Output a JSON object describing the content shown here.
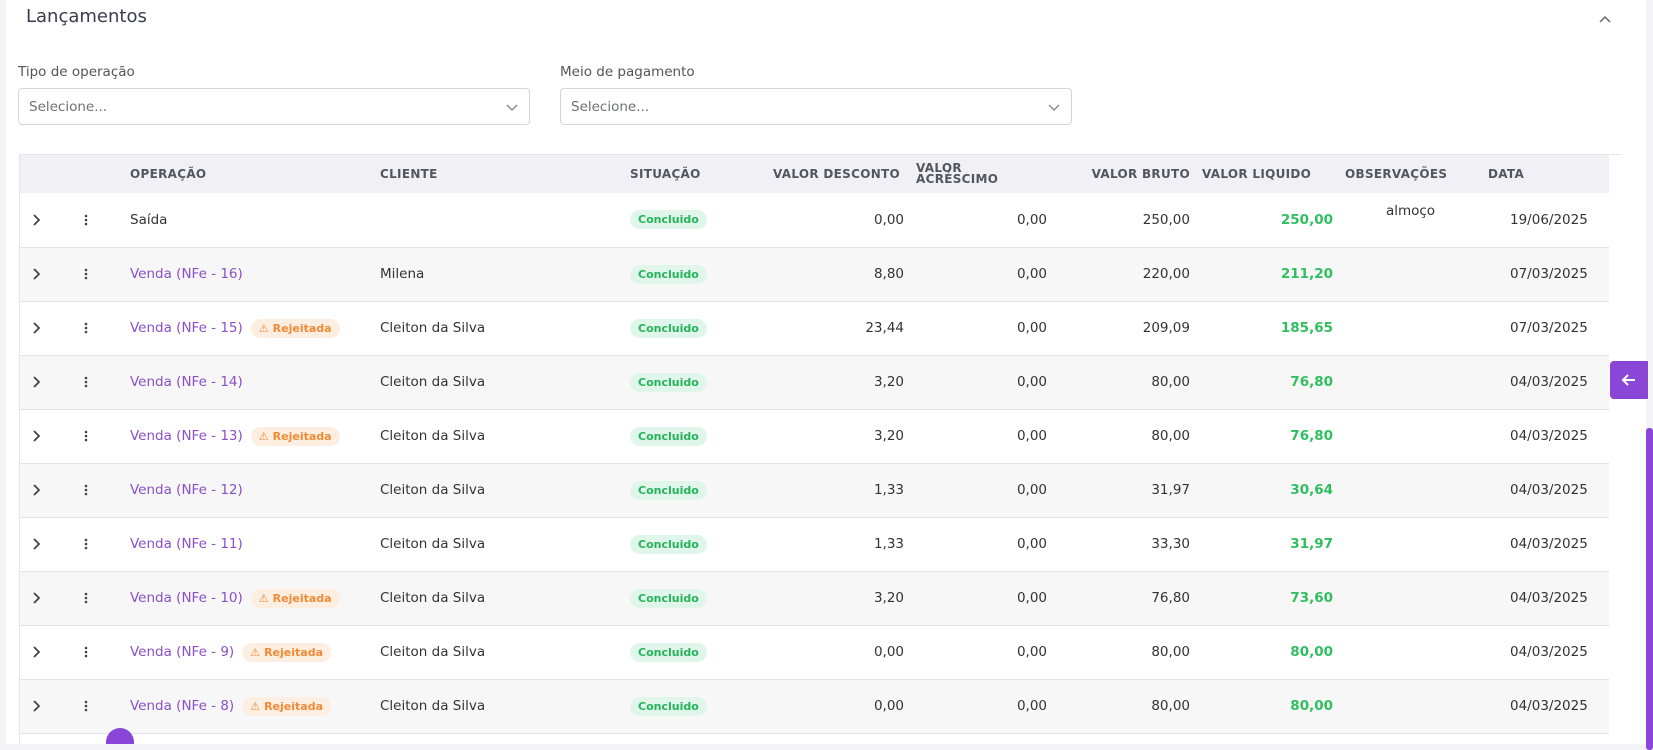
{
  "section": {
    "title": "Lançamentos"
  },
  "filters": {
    "operation": {
      "label": "Tipo de operação",
      "placeholder": "Selecione..."
    },
    "payment": {
      "label": "Meio de pagamento",
      "placeholder": "Selecione..."
    }
  },
  "table": {
    "headers": [
      "OPERAÇÃO",
      "CLIENTE",
      "SITUAÇÃO",
      "VALOR DESCONTO",
      "VALOR ACRÉSCIMO",
      "VALOR BRUTO",
      "VALOR LIQUIDO",
      "OBSERVAÇÕES",
      "DATA"
    ],
    "rows": [
      {
        "op": "Saída",
        "link": false,
        "rej": "",
        "client": "",
        "status": "Concluido",
        "desc": "0,00",
        "acr": "0,00",
        "bruto": "250,00",
        "liq": "250,00",
        "obs": "almoço",
        "date": "19/06/2025"
      },
      {
        "op": "Venda (NFe - 16)",
        "link": true,
        "rej": "",
        "client": "Milena",
        "status": "Concluido",
        "desc": "8,80",
        "acr": "0,00",
        "bruto": "220,00",
        "liq": "211,20",
        "obs": "",
        "date": "07/03/2025"
      },
      {
        "op": "Venda (NFe - 15)",
        "link": true,
        "rej": "Rejeitada",
        "client": "Cleiton da Silva",
        "status": "Concluido",
        "desc": "23,44",
        "acr": "0,00",
        "bruto": "209,09",
        "liq": "185,65",
        "obs": "",
        "date": "07/03/2025"
      },
      {
        "op": "Venda (NFe - 14)",
        "link": true,
        "rej": "",
        "client": "Cleiton da Silva",
        "status": "Concluido",
        "desc": "3,20",
        "acr": "0,00",
        "bruto": "80,00",
        "liq": "76,80",
        "obs": "",
        "date": "04/03/2025"
      },
      {
        "op": "Venda (NFe - 13)",
        "link": true,
        "rej": "Rejeitada",
        "client": "Cleiton da Silva",
        "status": "Concluido",
        "desc": "3,20",
        "acr": "0,00",
        "bruto": "80,00",
        "liq": "76,80",
        "obs": "",
        "date": "04/03/2025"
      },
      {
        "op": "Venda (NFe - 12)",
        "link": true,
        "rej": "",
        "client": "Cleiton da Silva",
        "status": "Concluido",
        "desc": "1,33",
        "acr": "0,00",
        "bruto": "31,97",
        "liq": "30,64",
        "obs": "",
        "date": "04/03/2025"
      },
      {
        "op": "Venda (NFe - 11)",
        "link": true,
        "rej": "",
        "client": "Cleiton da Silva",
        "status": "Concluido",
        "desc": "1,33",
        "acr": "0,00",
        "bruto": "33,30",
        "liq": "31,97",
        "obs": "",
        "date": "04/03/2025"
      },
      {
        "op": "Venda (NFe - 10)",
        "link": true,
        "rej": "Rejeitada",
        "client": "Cleiton da Silva",
        "status": "Concluido",
        "desc": "3,20",
        "acr": "0,00",
        "bruto": "76,80",
        "liq": "73,60",
        "obs": "",
        "date": "04/03/2025"
      },
      {
        "op": "Venda (NFe - 9)",
        "link": true,
        "rej": "Rejeitada",
        "client": "Cleiton da Silva",
        "status": "Concluido",
        "desc": "0,00",
        "acr": "0,00",
        "bruto": "80,00",
        "liq": "80,00",
        "obs": "",
        "date": "04/03/2025"
      },
      {
        "op": "Venda (NFe - 8)",
        "link": true,
        "rej": "Rejeitada",
        "client": "Cleiton da Silva",
        "status": "Concluido",
        "desc": "0,00",
        "acr": "0,00",
        "bruto": "80,00",
        "liq": "80,00",
        "obs": "",
        "date": "04/03/2025"
      }
    ]
  },
  "colors": {
    "accent": "#8a46d6",
    "link": "#8b4fc9",
    "success": "#2fbf5f",
    "warning": "#f08a34"
  },
  "icons": {
    "collapse": "chevron-up-icon",
    "select": "chevron-down-icon",
    "expand": "chevron-right-icon",
    "menu": "kebab-menu-icon",
    "side": "arrow-left-icon",
    "warn": "warning-triangle-icon"
  }
}
